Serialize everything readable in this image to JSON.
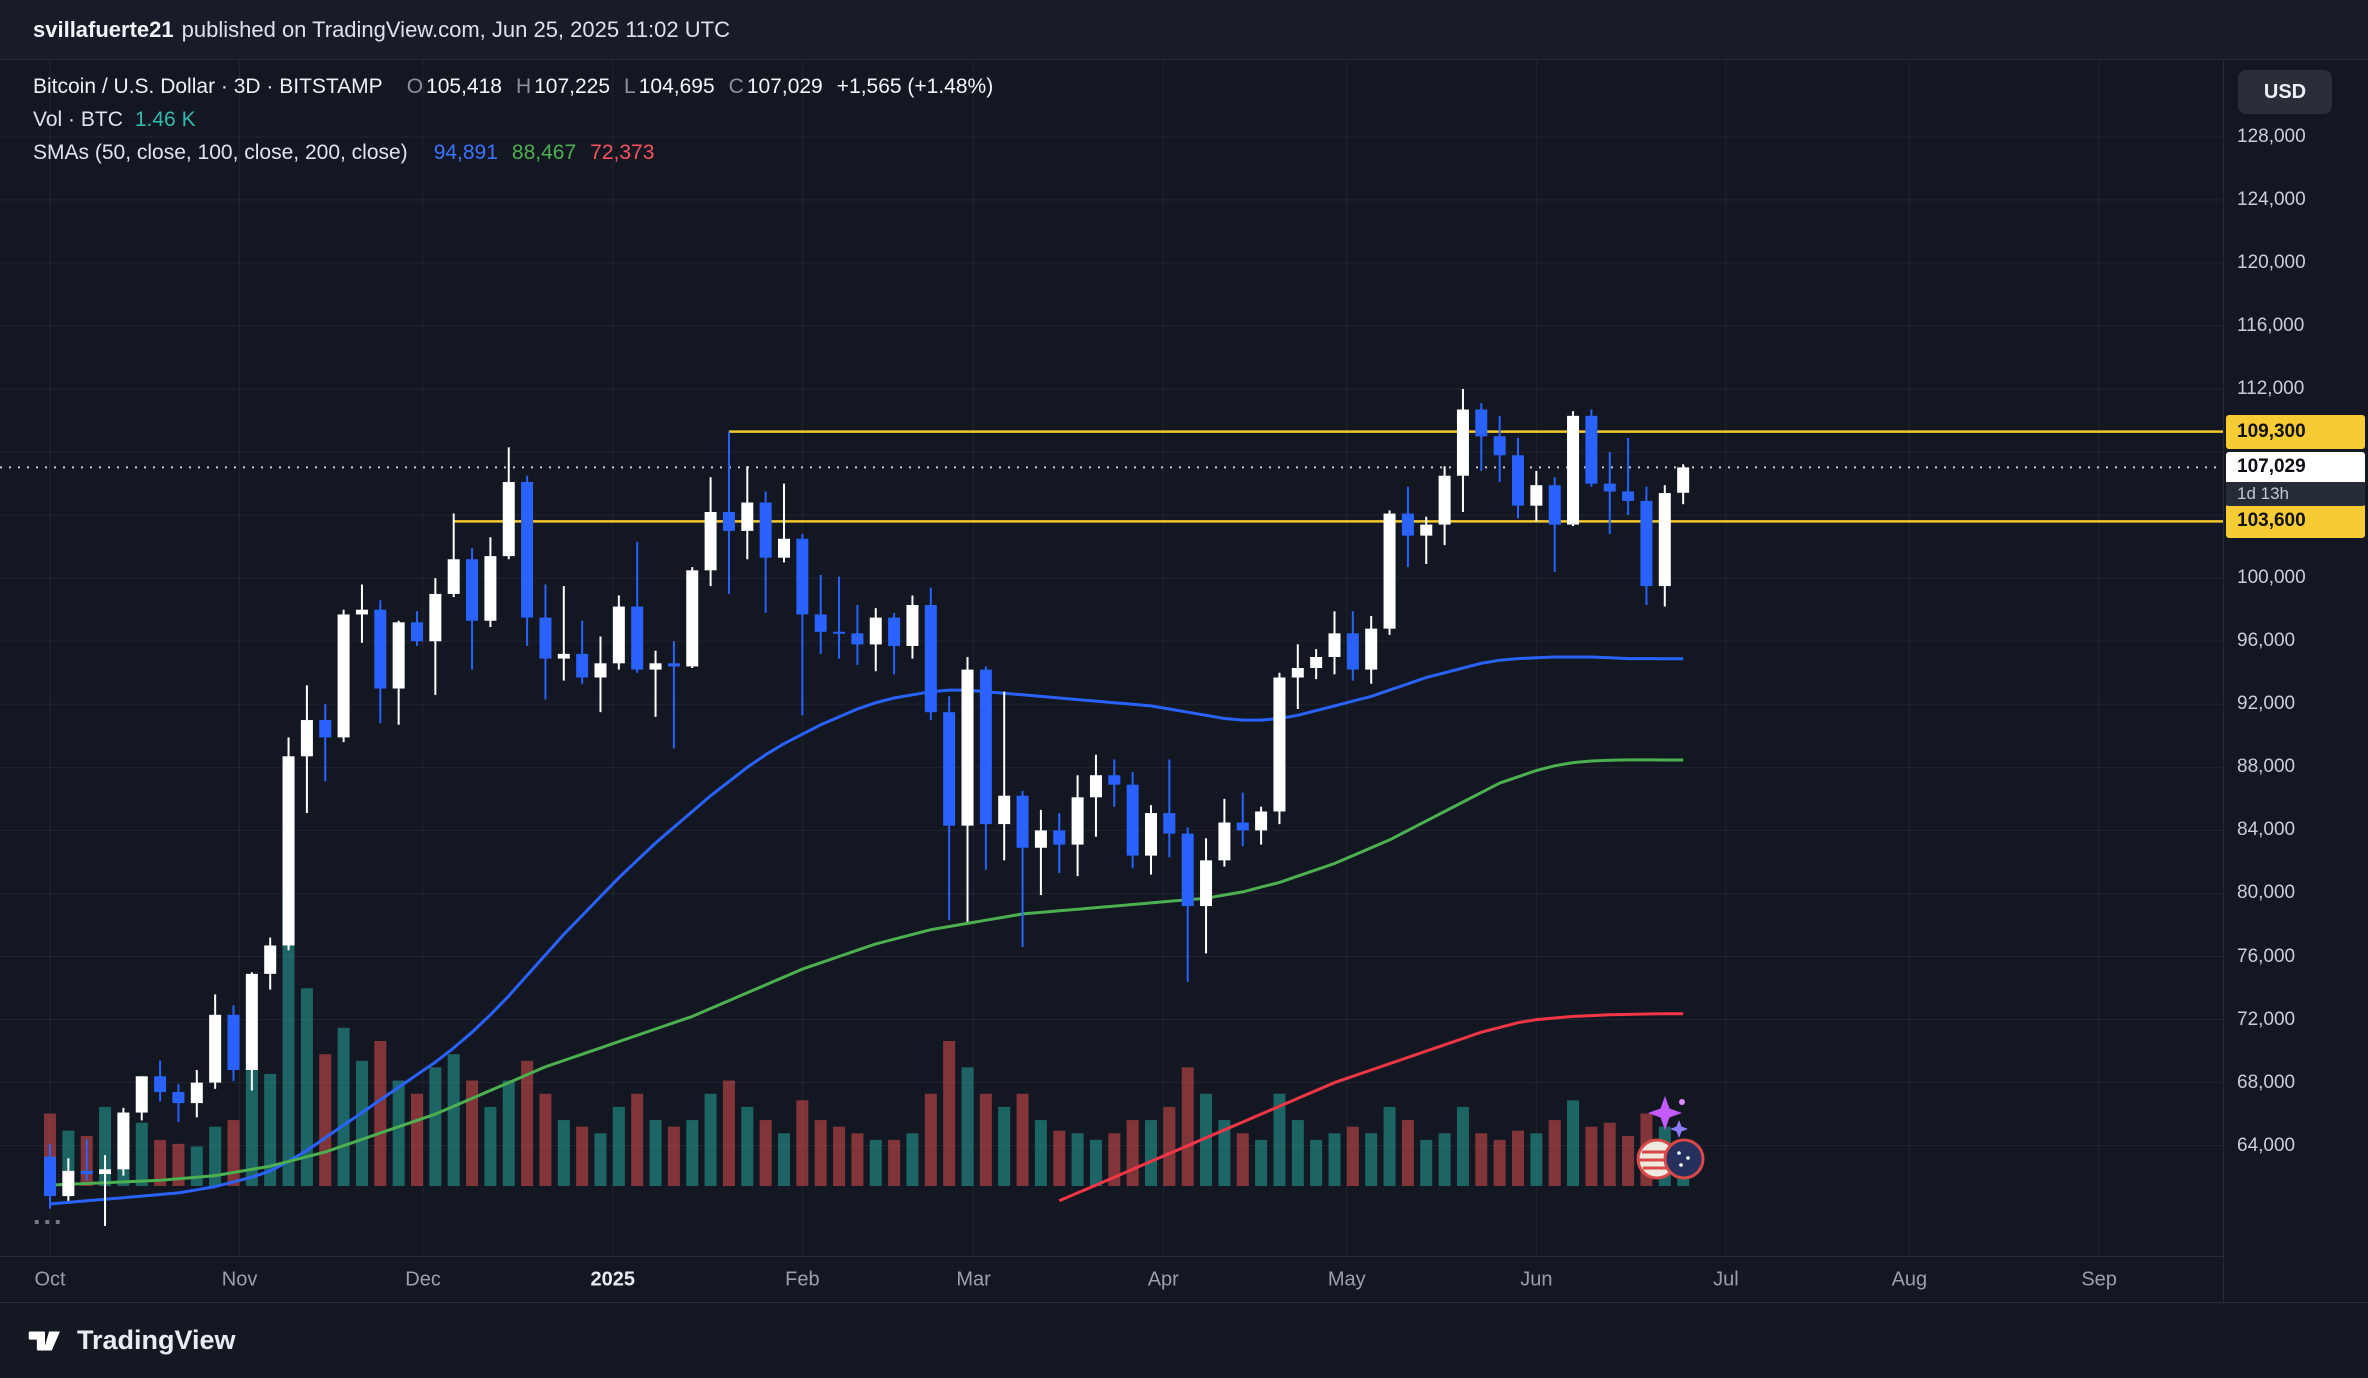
{
  "header": {
    "username": "svillafuerte21",
    "published_text": "published on TradingView.com, Jun 25, 2025 11:02 UTC"
  },
  "footer": {
    "brand": "TradingView"
  },
  "legend": {
    "symbol_line": "Bitcoin / U.S. Dollar · 3D · BITSTAMP",
    "ohlc": [
      {
        "k": "O",
        "v": "105,418"
      },
      {
        "k": "H",
        "v": "107,225"
      },
      {
        "k": "L",
        "v": "104,695"
      },
      {
        "k": "C",
        "v": "107,029"
      }
    ],
    "change": "+1,565 (+1.48%)",
    "vol_label": "Vol · BTC",
    "vol_value": "1.46 K",
    "sma_label": "SMAs (50, close, 100, close, 200, close)",
    "sma_values": [
      {
        "v": "94,891",
        "color": "#3d74ff"
      },
      {
        "v": "88,467",
        "color": "#4caf50"
      },
      {
        "v": "72,373",
        "color": "#f7525f"
      }
    ],
    "more": "..."
  },
  "price_axis": {
    "currency": "USD",
    "ticks": [
      {
        "label": "128,000",
        "price": 128000
      },
      {
        "label": "124,000",
        "price": 124000
      },
      {
        "label": "120,000",
        "price": 120000
      },
      {
        "label": "116,000",
        "price": 116000
      },
      {
        "label": "112,000",
        "price": 112000
      },
      {
        "label": "100,000",
        "price": 100000
      },
      {
        "label": "96,000",
        "price": 96000
      },
      {
        "label": "92,000",
        "price": 92000
      },
      {
        "label": "88,000",
        "price": 88000
      },
      {
        "label": "84,000",
        "price": 84000
      },
      {
        "label": "80,000",
        "price": 80000
      },
      {
        "label": "76,000",
        "price": 76000
      },
      {
        "label": "72,000",
        "price": 72000
      },
      {
        "label": "68,000",
        "price": 68000
      },
      {
        "label": "64,000",
        "price": 64000
      }
    ],
    "level_labels": [
      {
        "label": "109,300",
        "price": 109300
      },
      {
        "label": "103,600",
        "price": 103600
      }
    ],
    "last_label": {
      "label": "107,029",
      "countdown": "1d 13h",
      "price": 107029
    }
  },
  "time_axis": {
    "ticks": [
      {
        "label": "Oct",
        "idx": 0
      },
      {
        "label": "Nov",
        "idx": 10.33
      },
      {
        "label": "Dec",
        "idx": 20.33
      },
      {
        "label": "2025",
        "idx": 30.67,
        "year": true
      },
      {
        "label": "Feb",
        "idx": 41
      },
      {
        "label": "Mar",
        "idx": 50.33
      },
      {
        "label": "Apr",
        "idx": 60.67
      },
      {
        "label": "May",
        "idx": 70.67
      },
      {
        "label": "Jun",
        "idx": 81
      },
      {
        "label": "Jul",
        "idx": 91.33
      },
      {
        "label": "Aug",
        "idx": 101.33
      },
      {
        "label": "Sep",
        "idx": 111.67
      }
    ]
  },
  "canvas_icons": [
    {
      "name": "sparkles-icon",
      "desc": "purple sparkle sticker on chart"
    },
    {
      "name": "overlapping-circles-icon",
      "desc": "red/white striped circle overlapping navy circle sticker"
    }
  ],
  "chart_data": {
    "type": "candlestick",
    "title": "Bitcoin / U.S. Dollar · 3D · BITSTAMP",
    "interval": "3D",
    "legend_position": "top-left",
    "grid": true,
    "ylim": [
      57000,
      133000
    ],
    "grid_h": {
      "min": 64000,
      "max": 128000,
      "step": 4000
    },
    "last_price": 107029,
    "current": {
      "open": 105418,
      "high": 107225,
      "low": 104695,
      "close": 107029,
      "change": 1565,
      "change_pct": 1.48,
      "volume_btc": 1460
    },
    "levels": [
      {
        "price": 109300,
        "from_idx": 37
      },
      {
        "price": 103600,
        "from_idx": 22
      }
    ],
    "candles": [
      [
        63300,
        64100,
        60000,
        60800
      ],
      [
        60800,
        63200,
        60500,
        62400
      ],
      [
        62400,
        64400,
        61800,
        62200
      ],
      [
        62200,
        63400,
        58900,
        62500
      ],
      [
        62500,
        66400,
        62100,
        66100
      ],
      [
        66100,
        68400,
        65600,
        68400
      ],
      [
        68400,
        69400,
        66800,
        67400
      ],
      [
        67400,
        67900,
        65500,
        66700
      ],
      [
        66700,
        68800,
        65800,
        68000
      ],
      [
        68000,
        73600,
        67600,
        72300
      ],
      [
        72300,
        72900,
        68100,
        68800
      ],
      [
        68800,
        75000,
        67500,
        74900
      ],
      [
        74900,
        77200,
        73900,
        76700
      ],
      [
        76700,
        89900,
        76400,
        88700
      ],
      [
        88700,
        93200,
        85100,
        91000
      ],
      [
        91000,
        92000,
        87100,
        89900
      ],
      [
        89900,
        98000,
        89600,
        97700
      ],
      [
        97700,
        99600,
        95900,
        98000
      ],
      [
        98000,
        98600,
        90800,
        93000
      ],
      [
        93000,
        97300,
        90700,
        97200
      ],
      [
        97200,
        97900,
        95700,
        96000
      ],
      [
        96000,
        100000,
        92600,
        99000
      ],
      [
        99000,
        104100,
        98800,
        101200
      ],
      [
        101200,
        101900,
        94200,
        97300
      ],
      [
        97300,
        102600,
        96900,
        101400
      ],
      [
        101400,
        108300,
        101200,
        106100
      ],
      [
        106100,
        106500,
        95700,
        97500
      ],
      [
        97500,
        99600,
        92300,
        94900
      ],
      [
        94900,
        99500,
        93500,
        95200
      ],
      [
        95200,
        97300,
        93300,
        93700
      ],
      [
        93700,
        96300,
        91500,
        94600
      ],
      [
        94600,
        98900,
        94200,
        98200
      ],
      [
        98200,
        102300,
        94000,
        94200
      ],
      [
        94200,
        95400,
        91200,
        94600
      ],
      [
        94600,
        96000,
        89200,
        94400
      ],
      [
        94400,
        100700,
        94300,
        100500
      ],
      [
        100500,
        106400,
        99500,
        104200
      ],
      [
        104200,
        109300,
        99000,
        103000
      ],
      [
        103000,
        107100,
        101200,
        104800
      ],
      [
        104800,
        105500,
        97800,
        101300
      ],
      [
        101300,
        106000,
        101000,
        102500
      ],
      [
        102500,
        102800,
        91300,
        97700
      ],
      [
        97700,
        100200,
        95200,
        96600
      ],
      [
        96600,
        100100,
        94900,
        96500
      ],
      [
        96500,
        98300,
        94500,
        95800
      ],
      [
        95800,
        98100,
        94100,
        97500
      ],
      [
        97500,
        97800,
        93900,
        95700
      ],
      [
        95700,
        98900,
        94900,
        98300
      ],
      [
        98300,
        99400,
        91000,
        91500
      ],
      [
        91500,
        92500,
        78300,
        84300
      ],
      [
        84300,
        95000,
        78200,
        94200
      ],
      [
        94200,
        94400,
        81500,
        84400
      ],
      [
        84400,
        92800,
        82100,
        86200
      ],
      [
        86200,
        86500,
        76600,
        82900
      ],
      [
        82900,
        85300,
        79900,
        84000
      ],
      [
        84000,
        85100,
        81300,
        83100
      ],
      [
        83100,
        87500,
        81100,
        86100
      ],
      [
        86100,
        88800,
        83600,
        87500
      ],
      [
        87500,
        88500,
        85500,
        86900
      ],
      [
        86900,
        87700,
        81600,
        82400
      ],
      [
        82400,
        85600,
        81200,
        85100
      ],
      [
        85100,
        88500,
        82300,
        83800
      ],
      [
        83800,
        84200,
        74400,
        79200
      ],
      [
        79200,
        83500,
        76200,
        82100
      ],
      [
        82100,
        86000,
        81700,
        84500
      ],
      [
        84500,
        86400,
        83000,
        84000
      ],
      [
        84000,
        85500,
        83100,
        85200
      ],
      [
        85200,
        94000,
        84400,
        93700
      ],
      [
        93700,
        95800,
        91700,
        94300
      ],
      [
        94300,
        95500,
        93600,
        95000
      ],
      [
        95000,
        97900,
        93900,
        96500
      ],
      [
        96500,
        97900,
        93500,
        94200
      ],
      [
        94200,
        97600,
        93300,
        96800
      ],
      [
        96800,
        104300,
        96400,
        104100
      ],
      [
        104100,
        105800,
        100700,
        102700
      ],
      [
        102700,
        103900,
        100900,
        103400
      ],
      [
        103400,
        107100,
        102100,
        106500
      ],
      [
        106500,
        112000,
        104200,
        110700
      ],
      [
        110700,
        111100,
        106800,
        109000
      ],
      [
        109000,
        110300,
        106100,
        107800
      ],
      [
        107800,
        108900,
        103800,
        104600
      ],
      [
        104600,
        106800,
        103600,
        105900
      ],
      [
        105900,
        106400,
        100400,
        103400
      ],
      [
        103400,
        110600,
        103300,
        110300
      ],
      [
        110300,
        110700,
        105800,
        106000
      ],
      [
        106000,
        108000,
        102800,
        105500
      ],
      [
        105500,
        108900,
        104000,
        104900
      ],
      [
        104900,
        105800,
        98300,
        99500
      ],
      [
        99500,
        105900,
        98200,
        105400
      ],
      [
        105418,
        107225,
        104695,
        107029
      ]
    ],
    "volumes": [
      5500,
      4200,
      3800,
      6000,
      5200,
      4800,
      3500,
      3200,
      3000,
      4500,
      5000,
      9000,
      8500,
      22000,
      15000,
      10000,
      12000,
      9500,
      11000,
      8000,
      7000,
      9000,
      10000,
      8000,
      6000,
      8000,
      9500,
      7000,
      5000,
      4500,
      4000,
      6000,
      7000,
      5000,
      4500,
      5000,
      7000,
      8000,
      6000,
      5000,
      4000,
      6500,
      5000,
      4500,
      4000,
      3500,
      3500,
      4000,
      7000,
      11000,
      9000,
      7000,
      6000,
      7000,
      5000,
      4200,
      4000,
      3500,
      4000,
      5000,
      5000,
      6000,
      9000,
      7000,
      5000,
      4000,
      3500,
      7000,
      5000,
      3500,
      4000,
      4500,
      4000,
      6000,
      5000,
      3500,
      4000,
      6000,
      4000,
      3500,
      4200,
      4000,
      5000,
      6500,
      4500,
      4800,
      3800,
      5500,
      4500,
      1460
    ],
    "series": [
      {
        "name": "SMA 50",
        "color": "#2962ff",
        "start_idx": 0,
        "values": [
          60300,
          60400,
          60500,
          60600,
          60700,
          60800,
          60900,
          61000,
          61200,
          61400,
          61700,
          62000,
          62400,
          63000,
          63700,
          64500,
          65300,
          66100,
          66900,
          67700,
          68500,
          69300,
          70200,
          71200,
          72300,
          73500,
          74800,
          76100,
          77400,
          78600,
          79800,
          81000,
          82100,
          83200,
          84200,
          85200,
          86200,
          87100,
          88000,
          88800,
          89500,
          90100,
          90700,
          91200,
          91700,
          92100,
          92400,
          92600,
          92800,
          92900,
          92900,
          92800,
          92700,
          92600,
          92500,
          92400,
          92300,
          92200,
          92100,
          92000,
          91900,
          91700,
          91500,
          91300,
          91100,
          91000,
          91000,
          91100,
          91300,
          91600,
          91900,
          92200,
          92500,
          92900,
          93300,
          93700,
          94000,
          94300,
          94600,
          94800,
          94900,
          94950,
          95000,
          95000,
          95000,
          94950,
          94900,
          94900,
          94890,
          94891
        ]
      },
      {
        "name": "SMA 100",
        "color": "#4caf50",
        "start_idx": 0,
        "values": [
          61500,
          61550,
          61600,
          61650,
          61700,
          61750,
          61800,
          61900,
          62000,
          62100,
          62300,
          62500,
          62700,
          63000,
          63300,
          63600,
          64000,
          64400,
          64800,
          65200,
          65600,
          66000,
          66500,
          67000,
          67500,
          68000,
          68500,
          69000,
          69400,
          69800,
          70200,
          70600,
          71000,
          71400,
          71800,
          72200,
          72700,
          73200,
          73700,
          74200,
          74700,
          75200,
          75600,
          76000,
          76400,
          76800,
          77100,
          77400,
          77700,
          77900,
          78100,
          78300,
          78500,
          78700,
          78800,
          78900,
          79000,
          79100,
          79200,
          79300,
          79400,
          79500,
          79600,
          79700,
          79900,
          80100,
          80400,
          80700,
          81100,
          81500,
          81900,
          82400,
          82900,
          83400,
          84000,
          84600,
          85200,
          85800,
          86400,
          87000,
          87400,
          87800,
          88100,
          88300,
          88400,
          88450,
          88470,
          88470,
          88467,
          88467
        ]
      },
      {
        "name": "SMA 200",
        "color": "#f23645",
        "start_idx": 55,
        "values": [
          60500,
          61000,
          61500,
          62000,
          62500,
          63000,
          63500,
          64000,
          64500,
          65000,
          65500,
          66000,
          66500,
          67000,
          67500,
          68000,
          68400,
          68800,
          69200,
          69600,
          70000,
          70400,
          70800,
          71200,
          71500,
          71800,
          72000,
          72100,
          72200,
          72250,
          72300,
          72330,
          72350,
          72370,
          72373
        ]
      }
    ],
    "colors": {
      "up": "#ffffff",
      "down": "#2962ff",
      "vol_up": "rgba(38,166,154,0.55)",
      "vol_down": "rgba(239,83,80,0.5)",
      "level": "#f3c92e",
      "level_label_bg": "#f6cb33",
      "last_line": "#c8ccd6",
      "grid": "rgba(255,255,255,0.06)"
    }
  }
}
